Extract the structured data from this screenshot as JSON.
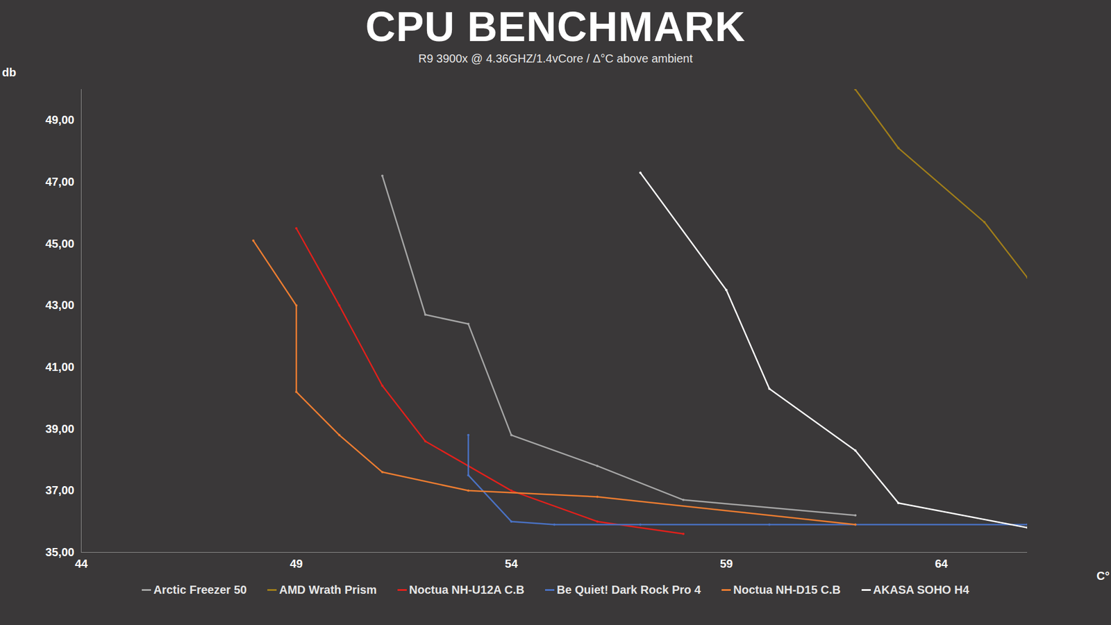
{
  "chart_data": {
    "type": "line",
    "title": "CPU BENCHMARK",
    "subtitle": "R9 3900x @ 4.36GHZ/1.4vCore  /  Δ°C above ambient",
    "x_label": "C°",
    "y_label": "db",
    "xlim": [
      44,
      66
    ],
    "xticks": [
      44,
      49,
      54,
      59,
      64
    ],
    "ylim": [
      35,
      50
    ],
    "yticks": [
      {
        "value": 35,
        "label": "35,00"
      },
      {
        "value": 37,
        "label": "37,00"
      },
      {
        "value": 39,
        "label": "39,00"
      },
      {
        "value": 41,
        "label": "41,00"
      },
      {
        "value": 43,
        "label": "43,00"
      },
      {
        "value": 45,
        "label": "45,00"
      },
      {
        "value": 47,
        "label": "47,00"
      },
      {
        "value": 49,
        "label": "49,00"
      }
    ],
    "grid": false,
    "legend": "bottom",
    "marker": "circle",
    "series": [
      {
        "name": "Arctic Freezer 50",
        "color": "#a6a6a6",
        "x": [
          51,
          52,
          53,
          54,
          56,
          58,
          62
        ],
        "values": [
          47.2,
          42.7,
          42.4,
          38.8,
          37.8,
          36.7,
          36.2
        ]
      },
      {
        "name": "AMD Wrath Prism",
        "color": "#a07e1a",
        "x": [
          62,
          63,
          65,
          66
        ],
        "values": [
          50,
          48.1,
          45.7,
          43.9
        ]
      },
      {
        "name": "Noctua NH-U12A C.B",
        "color": "#e3201b",
        "x": [
          49,
          50,
          51,
          52,
          53,
          54,
          56,
          58
        ],
        "values": [
          45.5,
          43.0,
          40.4,
          38.6,
          37.8,
          37.0,
          36.0,
          35.6
        ]
      },
      {
        "name": "Be Quiet! Dark Rock Pro 4",
        "color": "#4a72c4",
        "x": [
          53,
          53,
          54,
          55,
          57,
          60,
          62,
          66
        ],
        "values": [
          38.8,
          37.5,
          36.0,
          35.9,
          35.9,
          35.9,
          35.9,
          35.9
        ]
      },
      {
        "name": "Noctua NH-D15 C.B",
        "color": "#ed7d31",
        "x": [
          48,
          49,
          49,
          50,
          51,
          53,
          56,
          62
        ],
        "values": [
          45.1,
          43.0,
          40.2,
          38.8,
          37.6,
          37.0,
          36.8,
          35.9
        ]
      },
      {
        "name": "AKASA SOHO H4",
        "color": "#ffffff",
        "x": [
          57,
          59,
          60,
          62,
          63,
          66
        ],
        "values": [
          47.3,
          43.5,
          40.3,
          38.3,
          36.6,
          35.8
        ]
      }
    ]
  }
}
